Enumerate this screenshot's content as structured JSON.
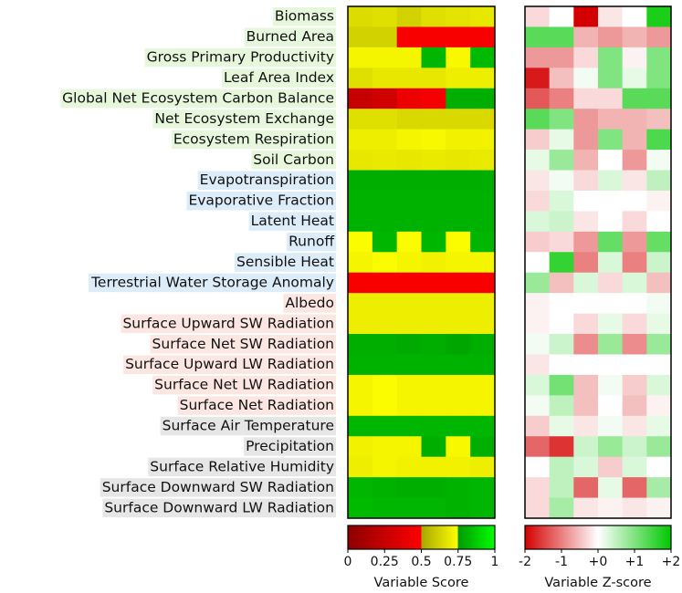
{
  "chart_data": [
    {
      "type": "heatmap",
      "categories": [
        "Biomass",
        "Burned Area",
        "Gross Primary Productivity",
        "Leaf Area Index",
        "Global Net Ecosystem Carbon Balance",
        "Net Ecosystem Exchange",
        "Ecosystem Respiration",
        "Soil Carbon",
        "Evapotranspiration",
        "Evaporative Fraction",
        "Latent Heat",
        "Runoff",
        "Sensible Heat",
        "Terrestrial Water Storage Anomaly",
        "Albedo",
        "Surface Upward SW Radiation",
        "Surface Net SW Radiation",
        "Surface Upward LW Radiation",
        "Surface Net LW Radiation",
        "Surface Net Radiation",
        "Surface Air Temperature",
        "Precipitation",
        "Surface Relative Humidity",
        "Surface Downward SW Radiation",
        "Surface Downward LW Radiation"
      ],
      "label_colors": [
        "#e6f7dc",
        "#e6f7dc",
        "#e6f7dc",
        "#e6f7dc",
        "#e6f7dc",
        "#e6f7dc",
        "#e6f7dc",
        "#e6f7dc",
        "#dcecf9",
        "#dcecf9",
        "#dcecf9",
        "#dcecf9",
        "#dcecf9",
        "#dcecf9",
        "#fbe6e1",
        "#fbe6e1",
        "#fbe6e1",
        "#fbe6e1",
        "#fbe6e1",
        "#fbe6e1",
        "#e6e6e6",
        "#e6e6e6",
        "#e6e6e6",
        "#e6e6e6",
        "#e6e6e6"
      ],
      "values": [
        [
          0.65,
          0.66,
          0.62,
          0.66,
          0.67,
          0.68
        ],
        [
          0.62,
          0.62,
          0.47,
          0.47,
          0.47,
          0.47
        ],
        [
          0.72,
          0.72,
          0.72,
          0.82,
          0.73,
          0.83
        ],
        [
          0.66,
          0.68,
          0.68,
          0.68,
          0.7,
          0.7
        ],
        [
          0.25,
          0.3,
          0.42,
          0.45,
          0.8,
          0.8
        ],
        [
          0.66,
          0.66,
          0.64,
          0.64,
          0.64,
          0.64
        ],
        [
          0.7,
          0.7,
          0.72,
          0.73,
          0.71,
          0.71
        ],
        [
          0.68,
          0.69,
          0.68,
          0.69,
          0.68,
          0.69
        ],
        [
          0.8,
          0.8,
          0.8,
          0.8,
          0.8,
          0.8
        ],
        [
          0.81,
          0.81,
          0.81,
          0.81,
          0.81,
          0.81
        ],
        [
          0.81,
          0.81,
          0.81,
          0.81,
          0.81,
          0.81
        ],
        [
          0.74,
          0.82,
          0.74,
          0.82,
          0.74,
          0.82
        ],
        [
          0.72,
          0.74,
          0.72,
          0.71,
          0.72,
          0.72
        ],
        [
          0.47,
          0.47,
          0.47,
          0.47,
          0.47,
          0.47
        ],
        [
          0.7,
          0.7,
          0.7,
          0.7,
          0.7,
          0.7
        ],
        [
          0.7,
          0.7,
          0.7,
          0.7,
          0.7,
          0.7
        ],
        [
          0.8,
          0.8,
          0.79,
          0.8,
          0.78,
          0.8
        ],
        [
          0.81,
          0.81,
          0.81,
          0.81,
          0.81,
          0.81
        ],
        [
          0.72,
          0.74,
          0.72,
          0.72,
          0.72,
          0.72
        ],
        [
          0.72,
          0.74,
          0.72,
          0.72,
          0.72,
          0.72
        ],
        [
          0.82,
          0.82,
          0.82,
          0.82,
          0.82,
          0.82
        ],
        [
          0.71,
          0.72,
          0.72,
          0.8,
          0.73,
          0.8
        ],
        [
          0.7,
          0.72,
          0.71,
          0.71,
          0.71,
          0.7
        ],
        [
          0.82,
          0.81,
          0.8,
          0.8,
          0.81,
          0.82
        ],
        [
          0.83,
          0.82,
          0.82,
          0.82,
          0.81,
          0.82
        ]
      ],
      "colormap": [
        [
          0,
          "#8c0000"
        ],
        [
          0.5,
          "#ff0000"
        ],
        [
          0.5,
          "#a8a800"
        ],
        [
          0.75,
          "#ffff00"
        ],
        [
          0.75,
          "#009a00"
        ],
        [
          1,
          "#00ff00"
        ]
      ],
      "clim": [
        0,
        1
      ],
      "cticks": [
        0,
        0.25,
        0.5,
        0.75,
        1
      ],
      "colorbar_label": "Variable Score"
    },
    {
      "type": "heatmap",
      "values": [
        [
          -0.3,
          0,
          -2,
          -0.2,
          0,
          1.8
        ],
        [
          1.3,
          1.3,
          -0.6,
          -0.8,
          -0.6,
          -0.8
        ],
        [
          -0.8,
          -0.8,
          -0.3,
          1,
          -0.1,
          1
        ],
        [
          -1.8,
          -0.5,
          0.1,
          1,
          0.2,
          1
        ],
        [
          -1.3,
          -1,
          -0.3,
          -0.3,
          1.3,
          1.3
        ],
        [
          1.3,
          1,
          -0.8,
          -0.6,
          -0.6,
          -0.5
        ],
        [
          -0.4,
          0.2,
          -0.8,
          1,
          -0.6,
          1.4
        ],
        [
          0.2,
          0.8,
          -0.6,
          0,
          -0.8,
          0.1
        ],
        [
          -0.2,
          0.1,
          -0.3,
          0.3,
          -0.2,
          0.5
        ],
        [
          -0.3,
          0.3,
          0,
          0,
          0,
          -0.1
        ],
        [
          0.3,
          0.4,
          -0.2,
          0,
          -0.3,
          0
        ],
        [
          -0.4,
          -0.3,
          -0.8,
          1.2,
          -0.8,
          1.2
        ],
        [
          0,
          1.6,
          -1,
          0.3,
          -1,
          0.4
        ],
        [
          0.8,
          -0.5,
          0.3,
          -0.3,
          0.3,
          -0.5
        ],
        [
          -0.1,
          0,
          0,
          0,
          0,
          0.1
        ],
        [
          -0.1,
          0,
          -0.3,
          0.2,
          -0.3,
          0.2
        ],
        [
          0.1,
          0.4,
          -0.9,
          0.8,
          -0.9,
          0.8
        ],
        [
          -0.2,
          0,
          0,
          0,
          0,
          0
        ],
        [
          0.3,
          1.1,
          -0.5,
          0.1,
          -0.4,
          0.3
        ],
        [
          0.1,
          0.5,
          -0.5,
          0,
          -0.5,
          -0.1
        ],
        [
          -0.4,
          0.2,
          -0.2,
          0.1,
          -0.2,
          0.2
        ],
        [
          -1.2,
          -1.6,
          0.4,
          0.8,
          0.4,
          0.8
        ],
        [
          0,
          0.5,
          0.3,
          -0.4,
          0.3,
          0
        ],
        [
          -0.3,
          0.5,
          -1.2,
          0.2,
          -1.2,
          0.7
        ],
        [
          -0.3,
          0.7,
          -0.2,
          -0.1,
          -0.2,
          -0.1
        ]
      ],
      "colormap": [
        [
          -2,
          "#d40000"
        ],
        [
          0,
          "#ffffff"
        ],
        [
          2,
          "#00c800"
        ]
      ],
      "clim": [
        -2,
        2
      ],
      "cticks": [
        -2,
        -1,
        {
          "value": 0,
          "label": "+0"
        },
        {
          "value": 1,
          "label": "+1"
        },
        {
          "value": 2,
          "label": "+2"
        }
      ],
      "colorbar_label": "Variable Z-score"
    }
  ]
}
